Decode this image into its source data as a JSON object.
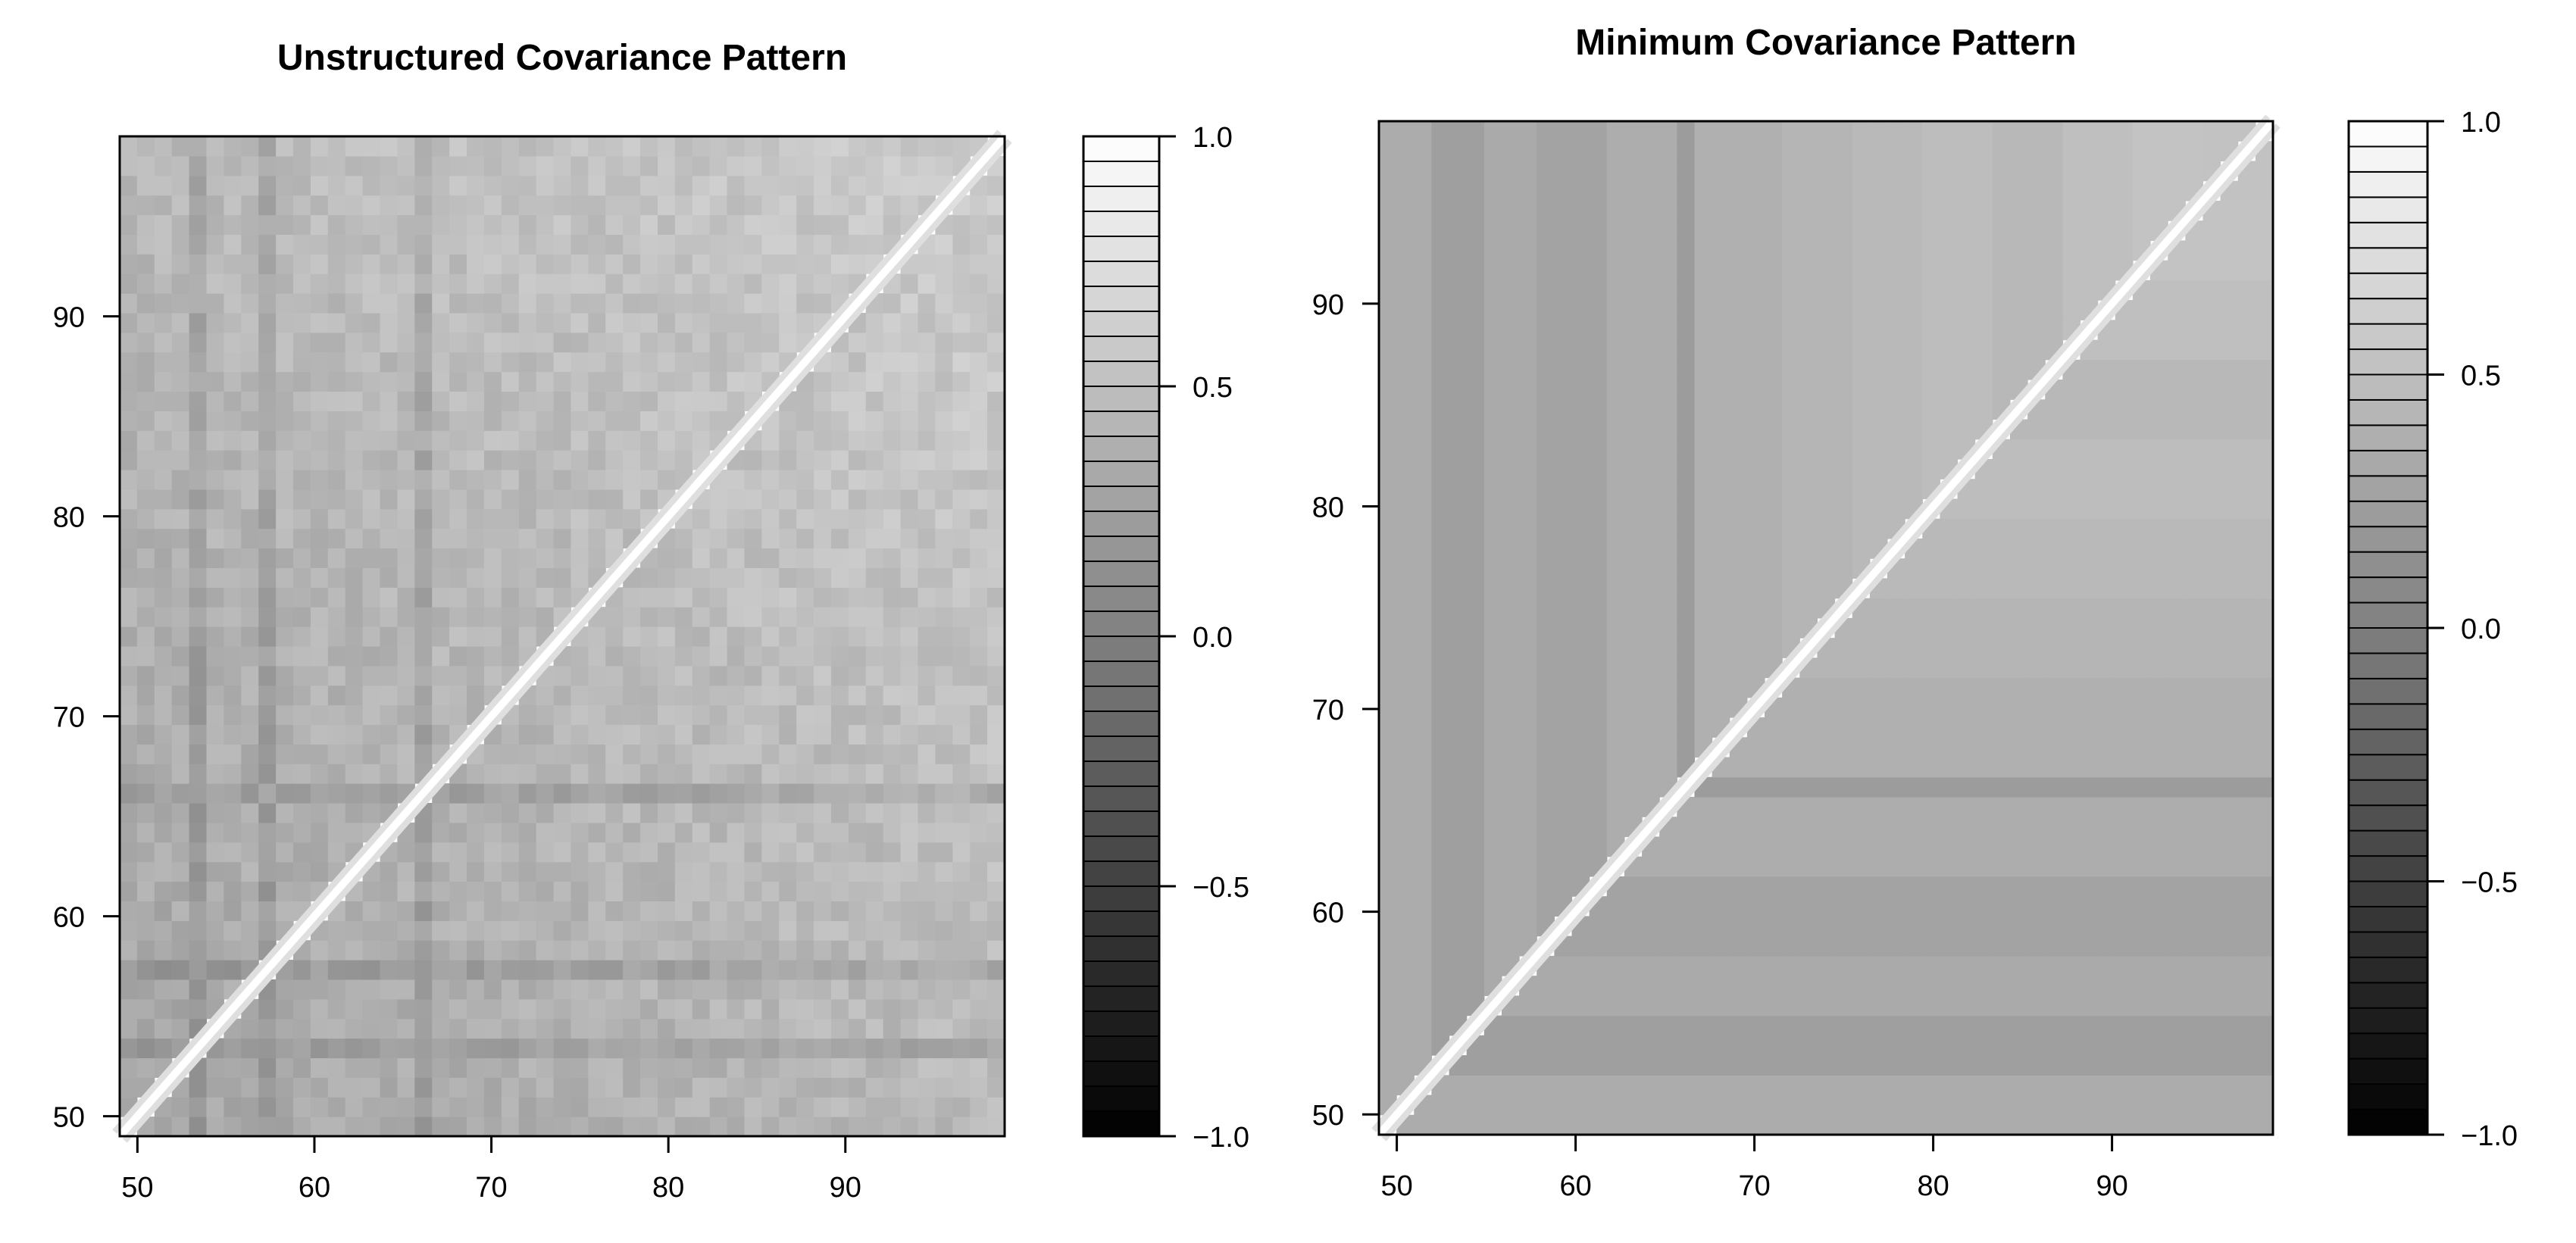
{
  "chart_data": [
    {
      "type": "heatmap",
      "title": "Unstructured Covariance Pattern",
      "x": {
        "range": [
          49,
          99
        ],
        "ticks": [
          50,
          60,
          70,
          80,
          90
        ],
        "label": ""
      },
      "y": {
        "range": [
          49,
          99
        ],
        "ticks": [
          50,
          60,
          70,
          80,
          90
        ],
        "label": ""
      },
      "diagonal_value": 1.0,
      "typical_value_range": [
        0.1,
        0.6
      ],
      "low_rows_cols": [
        53,
        57,
        66
      ],
      "upper_right_value": 0.6,
      "lower_left_value": 0.3,
      "colorbar": {
        "range": [
          -1.0,
          1.0
        ],
        "ticks": [
          "1.0",
          "0.5",
          "0.0",
          "−0.5",
          "−1.0"
        ],
        "levels": 40,
        "colors": [
          "#000000",
          "#ffffff"
        ]
      }
    },
    {
      "type": "heatmap",
      "title": "Minimum Covariance Pattern",
      "x": {
        "range": [
          49,
          99
        ],
        "ticks": [
          50,
          60,
          70,
          80,
          90
        ],
        "label": ""
      },
      "y": {
        "range": [
          49,
          99
        ],
        "ticks": [
          50,
          60,
          70,
          80,
          90
        ],
        "label": ""
      },
      "diagonal_value": 1.0,
      "pattern": "value(i,j) = v(min(i,j))",
      "column_values": [
        [
          49,
          0.35
        ],
        [
          52,
          0.25
        ],
        [
          55,
          0.33
        ],
        [
          58,
          0.28
        ],
        [
          62,
          0.36
        ],
        [
          66,
          0.22
        ],
        [
          67,
          0.38
        ],
        [
          72,
          0.42
        ],
        [
          76,
          0.45
        ],
        [
          80,
          0.48
        ],
        [
          84,
          0.44
        ],
        [
          88,
          0.5
        ],
        [
          92,
          0.53
        ],
        [
          96,
          0.52
        ]
      ],
      "colorbar": {
        "range": [
          -1.0,
          1.0
        ],
        "ticks": [
          "1.0",
          "0.5",
          "0.0",
          "−0.5",
          "−1.0"
        ],
        "levels": 40,
        "colors": [
          "#000000",
          "#ffffff"
        ]
      }
    }
  ]
}
